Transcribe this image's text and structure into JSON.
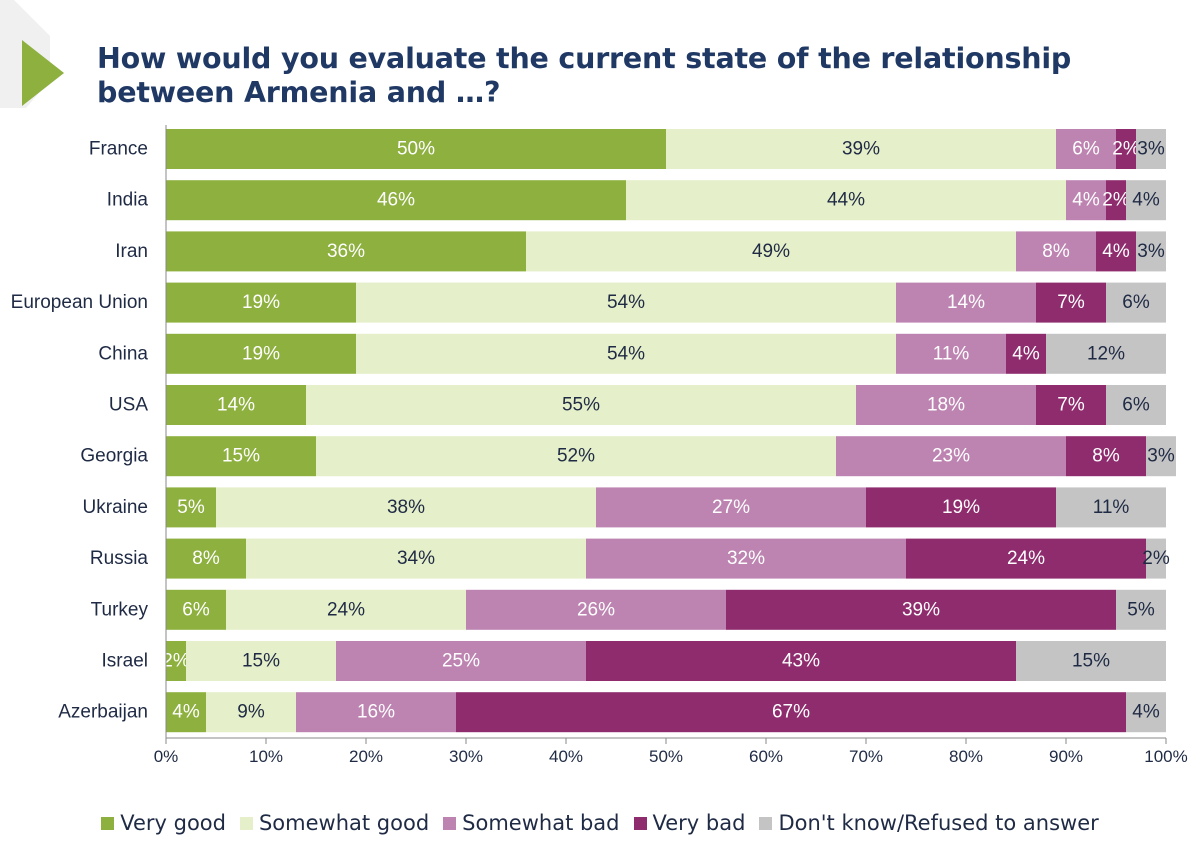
{
  "chart_data": {
    "type": "bar",
    "orientation": "horizontal",
    "stacked": true,
    "title": "How would you evaluate the current state of the relationship between Armenia and …?",
    "categories": [
      "France",
      "India",
      "Iran",
      "European Union",
      "China",
      "USA",
      "Georgia",
      "Ukraine",
      "Russia",
      "Turkey",
      "Israel",
      "Azerbaijan"
    ],
    "series": [
      {
        "name": "Very good",
        "color": "#8db03f",
        "label_color": "#ffffff",
        "values": [
          50,
          46,
          36,
          19,
          19,
          14,
          15,
          5,
          8,
          6,
          2,
          4
        ]
      },
      {
        "name": "Somewhat good",
        "color": "#e5efc9",
        "label_color": "#1f2a44",
        "values": [
          39,
          44,
          49,
          54,
          54,
          55,
          52,
          38,
          34,
          24,
          15,
          9
        ]
      },
      {
        "name": "Somewhat bad",
        "color": "#bd84b2",
        "label_color": "#ffffff",
        "values": [
          6,
          4,
          8,
          14,
          11,
          18,
          23,
          27,
          32,
          26,
          25,
          16
        ]
      },
      {
        "name": "Very bad",
        "color": "#8e2c6e",
        "label_color": "#ffffff",
        "values": [
          2,
          2,
          4,
          7,
          4,
          7,
          8,
          19,
          24,
          39,
          43,
          67
        ]
      },
      {
        "name": "Don't know/Refused to answer",
        "color": "#c4c4c4",
        "label_color": "#1f2a44",
        "values": [
          3,
          4,
          3,
          6,
          12,
          6,
          3,
          11,
          2,
          5,
          15,
          4
        ]
      }
    ],
    "value_suffix": "%",
    "xlim": [
      0,
      100
    ],
    "xticks": [
      "0%",
      "10%",
      "20%",
      "30%",
      "40%",
      "50%",
      "60%",
      "70%",
      "80%",
      "90%",
      "100%"
    ],
    "grid": false,
    "legend_position": "bottom"
  }
}
